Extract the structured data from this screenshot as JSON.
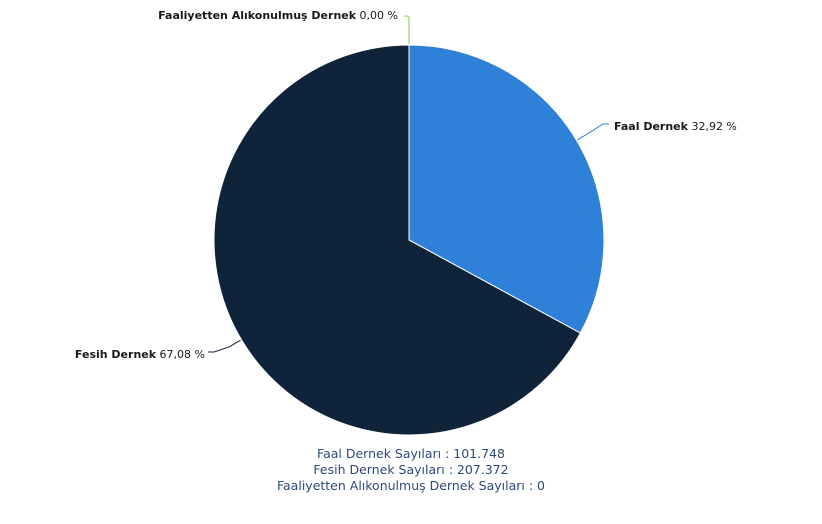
{
  "chart_data": {
    "type": "pie",
    "slices": [
      {
        "label": "Faal Dernek",
        "percent_text": "32,92 %",
        "value": 32.92,
        "color": "#2f80d8",
        "leader_color": "#2f80d8"
      },
      {
        "label": "Fesih Dernek",
        "percent_text": "67,08 %",
        "value": 67.08,
        "color": "#0f233a",
        "leader_color": "#0f233a"
      },
      {
        "label": "Faaliyetten Alıkonulmuş Dernek",
        "percent_text": "0,00 %",
        "value": 0.0,
        "color": "#8bc34a",
        "leader_color": "#8bc34a"
      }
    ],
    "start_angle_deg": 0
  },
  "summary": {
    "line1": "Faal Dernek Sayıları : 101.748",
    "line2": "Fesih Dernek Sayıları : 207.372",
    "line3": "Faaliyetten Alıkonulmuş Dernek Sayıları : 0"
  }
}
